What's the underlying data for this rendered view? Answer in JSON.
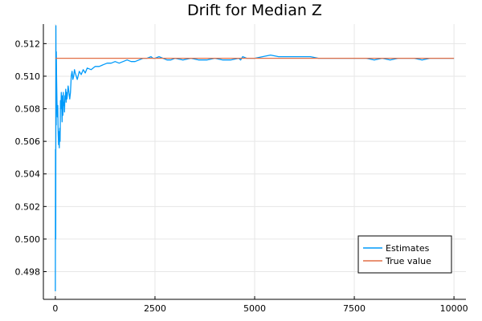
{
  "chart_data": {
    "type": "line",
    "title": "Drift for Median Z",
    "xlabel": "",
    "ylabel": "",
    "xlim": [
      -300,
      10300
    ],
    "ylim": [
      0.4963,
      0.5132
    ],
    "xticks": [
      0,
      2500,
      5000,
      7500,
      10000
    ],
    "xtick_labels": [
      "0",
      "2500",
      "5000",
      "7500",
      "10000"
    ],
    "yticks": [
      0.498,
      0.5,
      0.502,
      0.504,
      0.506,
      0.508,
      0.51,
      0.512
    ],
    "ytick_labels": [
      "0.498",
      "0.500",
      "0.502",
      "0.504",
      "0.506",
      "0.508",
      "0.510",
      "0.512"
    ],
    "grid": true,
    "legend_position": "bottom-right",
    "series": [
      {
        "name": "Estimates",
        "color": "#009AFA",
        "x": [
          0,
          5,
          10,
          15,
          20,
          25,
          30,
          40,
          50,
          60,
          70,
          80,
          90,
          100,
          110,
          120,
          130,
          140,
          150,
          160,
          170,
          180,
          190,
          200,
          210,
          220,
          230,
          240,
          250,
          260,
          270,
          280,
          290,
          300,
          320,
          340,
          360,
          380,
          400,
          420,
          440,
          460,
          480,
          500,
          550,
          600,
          650,
          700,
          750,
          800,
          900,
          1000,
          1100,
          1200,
          1300,
          1400,
          1500,
          1600,
          1700,
          1800,
          1900,
          2000,
          2100,
          2200,
          2300,
          2400,
          2450,
          2500,
          2600,
          2700,
          2800,
          2900,
          3000,
          3200,
          3400,
          3600,
          3800,
          4000,
          4200,
          4400,
          4600,
          4650,
          4700,
          4800,
          5000,
          5200,
          5400,
          5600,
          5800,
          6000,
          6200,
          6400,
          6600,
          6800,
          7000,
          7200,
          7400,
          7600,
          7800,
          8000,
          8200,
          8400,
          8600,
          8800,
          9000,
          9200,
          9400,
          9600,
          9800,
          10000
        ],
        "y": [
          0.4968,
          0.5055,
          0.5,
          0.5131,
          0.507,
          0.5115,
          0.51,
          0.5085,
          0.5075,
          0.5082,
          0.5065,
          0.5058,
          0.5066,
          0.5056,
          0.5068,
          0.506,
          0.5085,
          0.508,
          0.509,
          0.5082,
          0.5072,
          0.5088,
          0.5076,
          0.509,
          0.5082,
          0.5084,
          0.5078,
          0.5088,
          0.5086,
          0.5092,
          0.5084,
          0.509,
          0.5086,
          0.5088,
          0.5094,
          0.509,
          0.5086,
          0.509,
          0.51,
          0.5103,
          0.5098,
          0.51,
          0.5104,
          0.5102,
          0.5098,
          0.5103,
          0.5101,
          0.5104,
          0.5102,
          0.5105,
          0.5104,
          0.5106,
          0.5106,
          0.5107,
          0.5108,
          0.5108,
          0.5109,
          0.5108,
          0.5109,
          0.511,
          0.5109,
          0.5109,
          0.511,
          0.5111,
          0.5111,
          0.5112,
          0.5111,
          0.5111,
          0.5112,
          0.5111,
          0.511,
          0.511,
          0.5111,
          0.511,
          0.5111,
          0.511,
          0.511,
          0.5111,
          0.511,
          0.511,
          0.5111,
          0.511,
          0.5112,
          0.5111,
          0.5111,
          0.5112,
          0.5113,
          0.5112,
          0.5112,
          0.5112,
          0.5112,
          0.5112,
          0.5111,
          0.5111,
          0.5111,
          0.5111,
          0.5111,
          0.5111,
          0.5111,
          0.511,
          0.5111,
          0.511,
          0.5111,
          0.5111,
          0.5111,
          0.511,
          0.5111,
          0.5111,
          0.5111,
          0.5111
        ]
      },
      {
        "name": "True value",
        "color": "#E26F46",
        "x": [
          0,
          10000
        ],
        "y": [
          0.5111,
          0.5111
        ]
      }
    ]
  }
}
